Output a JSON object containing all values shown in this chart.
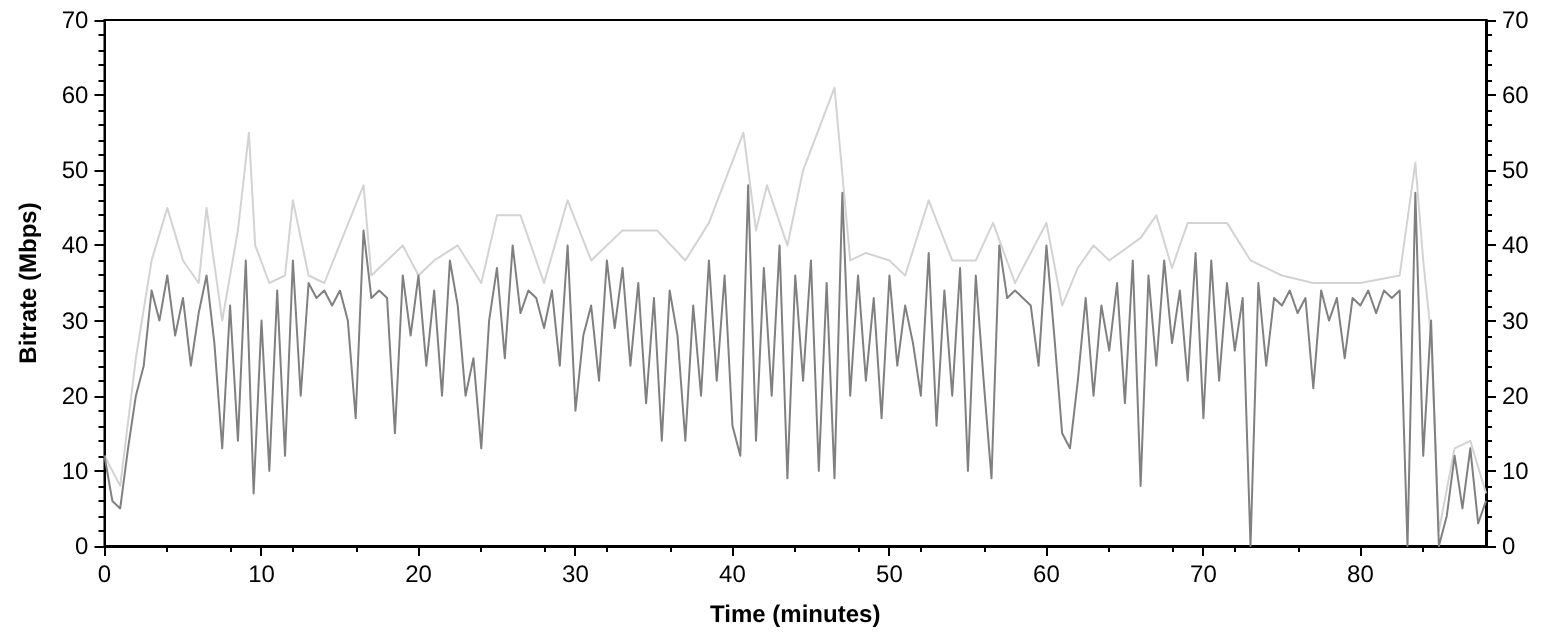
{
  "chart_data": {
    "type": "line",
    "xlabel": "Time (minutes)",
    "ylabel": "Bitrate (Mbps)",
    "xlim": [
      0,
      88
    ],
    "xticks": [
      0,
      10,
      20,
      30,
      40,
      50,
      60,
      70,
      80
    ],
    "ylim": [
      0,
      70
    ],
    "yticks": [
      0,
      10,
      20,
      30,
      40,
      50,
      60,
      70
    ],
    "y2lim": [
      0,
      70
    ],
    "y2ticks": [
      0,
      10,
      20,
      30,
      40,
      50,
      60,
      70
    ],
    "grid": false,
    "marker": "none",
    "line_style": "solid",
    "series": [
      {
        "color": "#d3d3d3",
        "x": [
          0,
          1,
          2,
          3,
          4,
          5,
          6,
          6.5,
          7.5,
          8.5,
          9.2,
          9.6,
          10.5,
          11.5,
          12,
          13,
          14,
          16.5,
          17,
          19,
          20,
          21,
          22.5,
          24,
          25,
          26.5,
          28,
          29.5,
          31,
          33,
          35.2,
          37,
          38.5,
          40.7,
          41.5,
          42.2,
          43.5,
          44.5,
          46.5,
          47.5,
          48.5,
          50,
          51,
          52.5,
          54,
          55.5,
          56.6,
          58,
          60,
          61,
          62,
          63,
          64,
          66,
          67,
          68,
          69,
          70.5,
          71.5,
          73,
          75,
          77,
          80,
          82.5,
          83.5,
          84,
          84.5,
          85,
          86,
          87,
          88
        ],
        "values": [
          12,
          8,
          25,
          38,
          45,
          38,
          35,
          45,
          30,
          42,
          55,
          40,
          35,
          36,
          46,
          36,
          35,
          48,
          36,
          40,
          36,
          38,
          40,
          35,
          44,
          44,
          35,
          46,
          38,
          42,
          42,
          38,
          43,
          55,
          42,
          48,
          40,
          50,
          61,
          38,
          39,
          38,
          36,
          46,
          38,
          38,
          43,
          35,
          43,
          32,
          37,
          40,
          38,
          41,
          44,
          37,
          43,
          43,
          43,
          38,
          36,
          35,
          35,
          36,
          51,
          38,
          28,
          2,
          13,
          14,
          7
        ]
      },
      {
        "color": "#808080",
        "x": [
          0,
          0.5,
          1,
          1.5,
          2,
          2.5,
          3,
          3.5,
          4,
          4.5,
          5,
          5.5,
          6,
          6.5,
          7,
          7.5,
          8,
          8.5,
          9,
          9.5,
          10,
          10.5,
          11,
          11.5,
          12,
          12.5,
          13,
          13.5,
          14,
          14.5,
          15,
          15.5,
          16,
          16.5,
          17,
          17.5,
          18,
          18.5,
          19,
          19.5,
          20,
          20.5,
          21,
          21.5,
          22,
          22.5,
          23,
          23.5,
          24,
          24.5,
          25,
          25.5,
          26,
          26.5,
          27,
          27.5,
          28,
          28.5,
          29,
          29.5,
          30,
          30.5,
          31,
          31.5,
          32,
          32.5,
          33,
          33.5,
          34,
          34.5,
          35,
          35.5,
          36,
          36.5,
          37,
          37.5,
          38,
          38.5,
          39,
          39.5,
          40,
          40.5,
          41,
          41.5,
          42,
          42.5,
          43,
          43.5,
          44,
          44.5,
          45,
          45.5,
          46,
          46.5,
          47,
          47.5,
          48,
          48.5,
          49,
          49.5,
          50,
          50.5,
          51,
          51.5,
          52,
          52.5,
          53,
          53.5,
          54,
          54.5,
          55,
          55.5,
          56,
          56.5,
          57,
          57.5,
          58,
          58.5,
          59,
          59.5,
          60,
          60.5,
          61,
          61.5,
          62,
          62.5,
          63,
          63.5,
          64,
          64.5,
          65,
          65.5,
          66,
          66.5,
          67,
          67.5,
          68,
          68.5,
          69,
          69.5,
          70,
          70.5,
          71,
          71.5,
          72,
          72.5,
          73,
          73.5,
          74,
          74.5,
          75,
          75.5,
          76,
          76.5,
          77,
          77.5,
          78,
          78.5,
          79,
          79.5,
          80,
          80.5,
          81,
          81.5,
          82,
          82.5,
          83,
          83.5,
          84,
          84.5,
          85,
          85.5,
          86,
          86.5,
          87,
          87.5,
          88
        ],
        "values": [
          12,
          6,
          5,
          13,
          20,
          24,
          34,
          30,
          36,
          28,
          33,
          24,
          31,
          36,
          27,
          13,
          32,
          14,
          38,
          7,
          30,
          10,
          34,
          12,
          38,
          20,
          35,
          33,
          34,
          32,
          34,
          30,
          17,
          42,
          33,
          34,
          33,
          15,
          36,
          28,
          36,
          24,
          34,
          20,
          38,
          32,
          20,
          25,
          13,
          30,
          37,
          25,
          40,
          31,
          34,
          33,
          29,
          34,
          24,
          40,
          18,
          28,
          32,
          22,
          38,
          29,
          37,
          24,
          35,
          19,
          33,
          14,
          34,
          28,
          14,
          32,
          20,
          38,
          22,
          36,
          16,
          12,
          48,
          14,
          37,
          20,
          40,
          9,
          36,
          22,
          38,
          10,
          35,
          9,
          47,
          20,
          36,
          22,
          33,
          17,
          36,
          24,
          32,
          27,
          20,
          39,
          16,
          34,
          20,
          37,
          10,
          36,
          22,
          9,
          40,
          33,
          34,
          33,
          32,
          24,
          40,
          28,
          15,
          13,
          22,
          33,
          20,
          32,
          26,
          35,
          19,
          38,
          8,
          36,
          24,
          38,
          27,
          34,
          22,
          39,
          17,
          38,
          22,
          35,
          26,
          33,
          0,
          35,
          24,
          33,
          32,
          34,
          31,
          33,
          21,
          34,
          30,
          33,
          25,
          33,
          32,
          34,
          31,
          34,
          33,
          34,
          0,
          47,
          12,
          30,
          0,
          4,
          12,
          5,
          13,
          3,
          6
        ]
      }
    ]
  }
}
